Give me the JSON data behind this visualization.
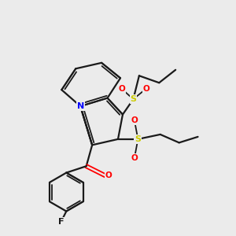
{
  "background_color": "#ebebeb",
  "bond_color": "#1a1a1a",
  "N_color": "#0000ff",
  "O_color": "#ff0000",
  "S_color": "#cccc00",
  "F_color": "#1a1a1a",
  "figsize": [
    3.0,
    3.0
  ],
  "dpi": 100,
  "xlim": [
    0,
    10
  ],
  "ylim": [
    0,
    10
  ]
}
